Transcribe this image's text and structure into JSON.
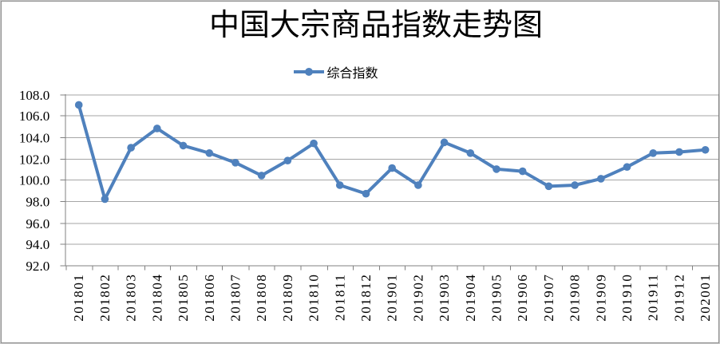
{
  "chart_data": {
    "type": "line",
    "title": "中国大宗商品指数走势图",
    "legend_position": "top",
    "grid": "horizontal",
    "categories": [
      "201801",
      "201802",
      "201803",
      "201804",
      "201805",
      "201806",
      "201807",
      "201808",
      "201809",
      "201810",
      "201811",
      "201812",
      "201901",
      "201902",
      "201903",
      "201904",
      "201905",
      "201906",
      "201907",
      "201908",
      "201909",
      "201910",
      "201911",
      "201912",
      "202001"
    ],
    "series": [
      {
        "name": "综合指数",
        "values": [
          107.0,
          98.2,
          103.0,
          104.8,
          103.2,
          102.5,
          101.6,
          100.4,
          101.8,
          103.4,
          99.5,
          98.7,
          101.1,
          99.5,
          103.5,
          102.5,
          101.0,
          100.8,
          99.4,
          99.5,
          100.1,
          101.2,
          102.5,
          102.6,
          102.8
        ]
      }
    ],
    "xlabel": "",
    "ylabel": "",
    "ylim": [
      92.0,
      108.0
    ],
    "ytick_step": 2.0,
    "ytick_labels": [
      "92.0",
      "94.0",
      "96.0",
      "98.0",
      "100.0",
      "102.0",
      "104.0",
      "106.0",
      "108.0"
    ],
    "colors": {
      "series": "#4F81BD",
      "gridline": "#A6A6A6",
      "axis": "#808080",
      "text": "#000000",
      "background": "#FFFFFF"
    }
  }
}
